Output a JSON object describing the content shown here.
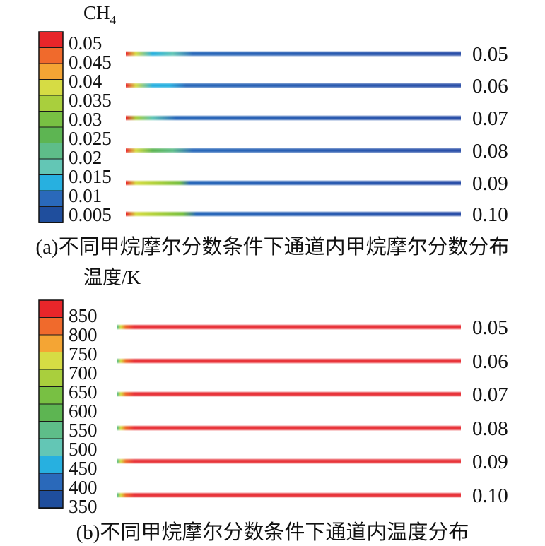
{
  "panels": [
    {
      "legend_title": "CH",
      "legend_title_sub": "4",
      "legend_labels": [
        "0.05",
        "0.045",
        "0.04",
        "0.035",
        "0.03",
        "0.025",
        "0.02",
        "0.015",
        "0.01",
        "0.005"
      ],
      "colorbar": [
        "#e8262a",
        "#f06a2c",
        "#f4a534",
        "#d6dc44",
        "#a9cf3d",
        "#78c043",
        "#5db552",
        "#5ebd89",
        "#63c6b5",
        "#27b0e0",
        "#2a69ba",
        "#1f4e9d"
      ],
      "row_labels": [
        "0.05",
        "0.06",
        "0.07",
        "0.08",
        "0.09",
        "0.10"
      ],
      "channel_color": "#2b4fa8",
      "caption": "(a)不同甲烷摩尔分数条件下通道内甲烷摩尔分数分布"
    },
    {
      "legend_title": "温度/K",
      "legend_labels": [
        "850",
        "800",
        "750",
        "700",
        "650",
        "600",
        "550",
        "500",
        "450",
        "400",
        "350"
      ],
      "colorbar": [
        "#e8262a",
        "#f06a2c",
        "#f4a534",
        "#d6dc44",
        "#a9cf3d",
        "#78c043",
        "#5db552",
        "#5ebd89",
        "#63c6b5",
        "#27b0e0",
        "#2a69ba",
        "#1f4e9d"
      ],
      "row_labels": [
        "0.05",
        "0.06",
        "0.07",
        "0.08",
        "0.09",
        "0.10"
      ],
      "channel_color": "#e8353b",
      "caption": "(b)不同甲烷摩尔分数条件下通道内温度分布"
    }
  ]
}
